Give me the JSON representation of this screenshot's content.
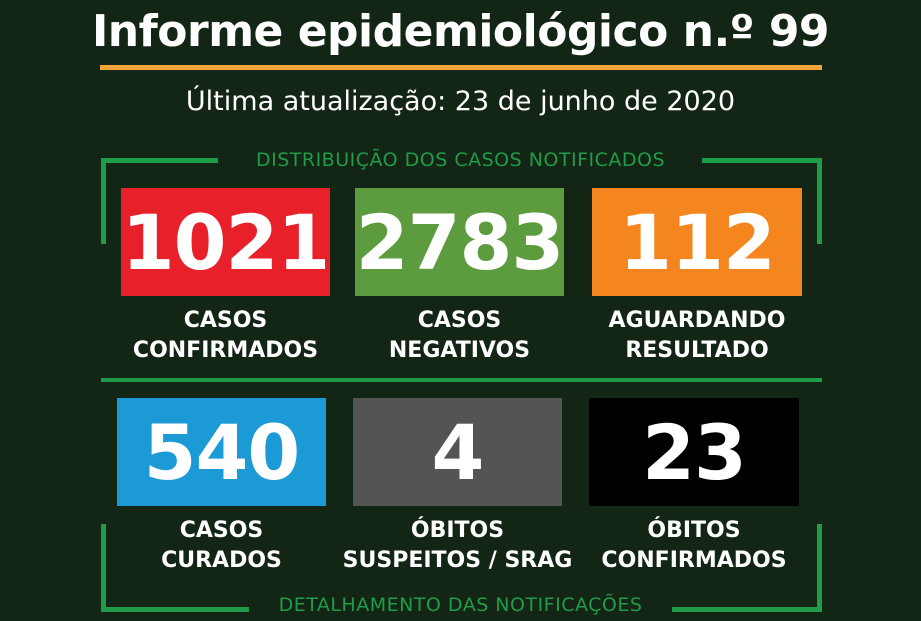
{
  "header": {
    "title": "Informe epidemiológico n.º 99",
    "updated": "Última atualização: 23 de junho de 2020"
  },
  "sections": {
    "distribution_label": "DISTRIBUIÇÃO DOS CASOS NOTIFICADOS",
    "detail_label": "DETALHAMENTO DAS NOTIFICAÇÕES"
  },
  "stats": [
    {
      "value": "1021",
      "line1": "CASOS",
      "line2": "CONFIRMADOS",
      "color": "#e8202a"
    },
    {
      "value": "2783",
      "line1": "CASOS",
      "line2": "NEGATIVOS",
      "color": "#5d9b3f"
    },
    {
      "value": "112",
      "line1": "AGUARDANDO",
      "line2": "RESULTADO",
      "color": "#f5861f"
    },
    {
      "value": "540",
      "line1": "CASOS",
      "line2": "CURADOS",
      "color": "#1c9ad6"
    },
    {
      "value": "4",
      "line1": "ÓBITOS",
      "line2": "SUSPEITOS / SRAG",
      "color": "#545454"
    },
    {
      "value": "23",
      "line1": "ÓBITOS",
      "line2": "CONFIRMADOS",
      "color": "#000000"
    }
  ],
  "colors": {
    "background": "#132615",
    "accent_line": "#f2a33a",
    "frame_green": "#1f9c47"
  }
}
